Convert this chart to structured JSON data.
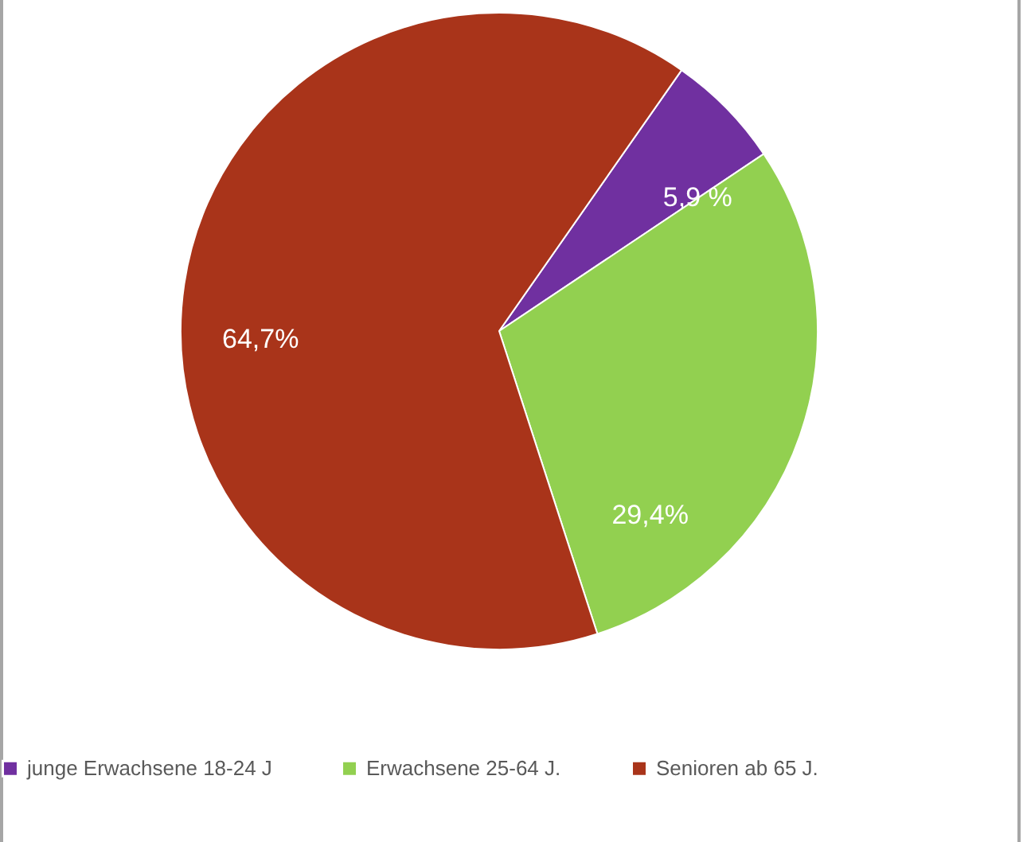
{
  "chart_data": {
    "type": "pie",
    "categories": [
      "junge Erwachsene 18-24 J",
      "Erwachsene 25-64 J.",
      "Senioren ab 65 J."
    ],
    "values": [
      5.9,
      29.4,
      64.7
    ],
    "colors": [
      "#7030a0",
      "#92d050",
      "#a9341a"
    ],
    "value_labels": [
      "5,9 %",
      "29,4%",
      "64,7%"
    ],
    "legend": "bottom"
  }
}
